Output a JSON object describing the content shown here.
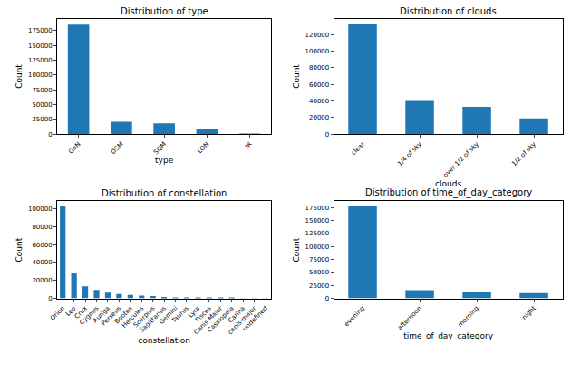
{
  "chart_data": [
    {
      "type": "bar",
      "title": "Distribution of type",
      "x_label": "type",
      "y_label": "Count",
      "categories": [
        "GaN",
        "DSM",
        "SQM",
        "LON",
        "IR"
      ],
      "values": [
        185000,
        21000,
        18500,
        8000,
        300
      ],
      "color": "#1f77b4",
      "ylim": [
        0,
        195000
      ],
      "yticks": [
        0,
        25000,
        50000,
        75000,
        100000,
        125000,
        150000,
        175000
      ],
      "grid": false
    },
    {
      "type": "bar",
      "title": "Distribution of clouds",
      "x_label": "clouds",
      "y_label": "Count",
      "categories": [
        "clear",
        "1/4 of sky",
        "over 1/2 of sky",
        "1/2 of sky"
      ],
      "values": [
        132000,
        40000,
        33000,
        19000
      ],
      "color": "#1f77b4",
      "ylim": [
        0,
        139000
      ],
      "yticks": [
        0,
        20000,
        40000,
        60000,
        80000,
        100000,
        120000
      ],
      "grid": false
    },
    {
      "type": "bar",
      "title": "Distribution of constellation",
      "x_label": "constellation",
      "y_label": "Count",
      "categories": [
        "Orion",
        "Leo",
        "Crux",
        "Cygnus",
        "Auriga",
        "Perseus",
        "Bootes",
        "Hercules",
        "Scorpius",
        "Sagittarius",
        "Gemini",
        "Taurus",
        "Lyra",
        "Pisces",
        "Canis Major",
        "Cassiopeia",
        "Carina",
        "canis-major",
        "undefined"
      ],
      "values": [
        103000,
        28500,
        13500,
        9500,
        6500,
        5000,
        4000,
        3200,
        2500,
        1500,
        1200,
        900,
        700,
        500,
        300,
        150,
        80,
        50,
        20
      ],
      "color": "#1f77b4",
      "ylim": [
        0,
        108000
      ],
      "yticks": [
        0,
        20000,
        40000,
        60000,
        80000,
        100000
      ],
      "grid": false
    },
    {
      "type": "bar",
      "title": "Distribution of time_of_day_category",
      "x_label": "time_of_day_category",
      "y_label": "Count",
      "categories": [
        "evening",
        "afternoon",
        "morning",
        "night"
      ],
      "values": [
        178000,
        16000,
        13000,
        10000
      ],
      "color": "#1f77b4",
      "ylim": [
        0,
        187000
      ],
      "yticks": [
        0,
        25000,
        50000,
        75000,
        100000,
        125000,
        150000,
        175000
      ],
      "grid": false
    }
  ]
}
